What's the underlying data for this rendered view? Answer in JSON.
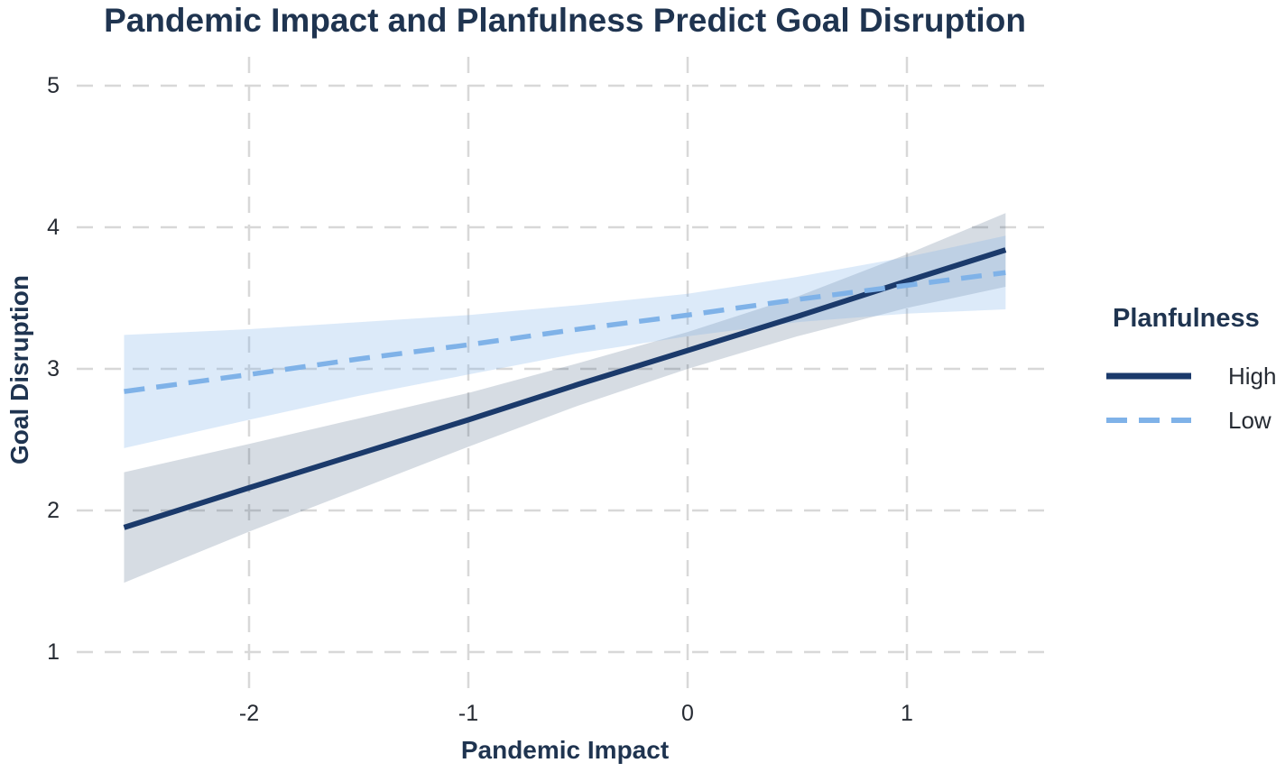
{
  "title": "Pandemic Impact and Planfulness Predict Goal Disruption",
  "axes": {
    "x": {
      "label": "Pandemic Impact",
      "tick_labels": [
        "-2",
        "-1",
        "0",
        "1"
      ]
    },
    "y": {
      "label": "Goal Disruption",
      "tick_labels": [
        "1",
        "2",
        "3",
        "4",
        "5"
      ]
    }
  },
  "legend": {
    "title": "Planfulness",
    "items": [
      {
        "label": "High",
        "line_style": "solid"
      },
      {
        "label": "Low",
        "line_style": "dashed"
      }
    ]
  },
  "colors": {
    "background": "#ffffff",
    "grid": "#d8d8d8",
    "title_text": "#1f3450",
    "axis_label_text": "#1f3450",
    "tick_text": "#262b33",
    "legend_text": "#262b33",
    "high_line": "#1b3a6b",
    "low_line": "#7fb2e8",
    "high_band": "rgba(52,78,115,0.20)",
    "low_band": "rgba(127,178,232,0.27)"
  },
  "chart_data": {
    "type": "line",
    "title": "Pandemic Impact and Planfulness Predict Goal Disruption",
    "xlabel": "Pandemic Impact",
    "ylabel": "Goal Disruption",
    "xlim": [
      -2.79,
      1.66
    ],
    "ylim": [
      0.67,
      5.19
    ],
    "x_ticks": [
      -2,
      -1,
      0,
      1
    ],
    "y_ticks": [
      1,
      2,
      3,
      4,
      5
    ],
    "grid": "dashed",
    "legend_position": "right",
    "legend_title": "Planfulness",
    "series": [
      {
        "name": "High",
        "style": "solid",
        "x": [
          -2.57,
          -2.0,
          -1.5,
          -1.0,
          -0.5,
          0.0,
          0.5,
          1.0,
          1.45
        ],
        "y": [
          1.88,
          2.16,
          2.4,
          2.64,
          2.89,
          3.13,
          3.37,
          3.62,
          3.84
        ],
        "ci_upper": [
          2.27,
          2.47,
          2.65,
          2.83,
          3.04,
          3.26,
          3.51,
          3.81,
          4.1
        ],
        "ci_lower": [
          1.49,
          1.85,
          2.15,
          2.45,
          2.74,
          3.0,
          3.23,
          3.43,
          3.58
        ]
      },
      {
        "name": "Low",
        "style": "dashed",
        "x": [
          -2.57,
          -2.0,
          -1.5,
          -1.0,
          -0.5,
          0.0,
          0.5,
          1.0,
          1.45
        ],
        "y": [
          2.84,
          2.96,
          3.07,
          3.17,
          3.28,
          3.38,
          3.49,
          3.59,
          3.68
        ],
        "ci_upper": [
          3.24,
          3.28,
          3.33,
          3.38,
          3.45,
          3.53,
          3.65,
          3.79,
          3.94
        ],
        "ci_lower": [
          2.44,
          2.64,
          2.81,
          2.96,
          3.11,
          3.23,
          3.33,
          3.39,
          3.42
        ]
      }
    ]
  }
}
